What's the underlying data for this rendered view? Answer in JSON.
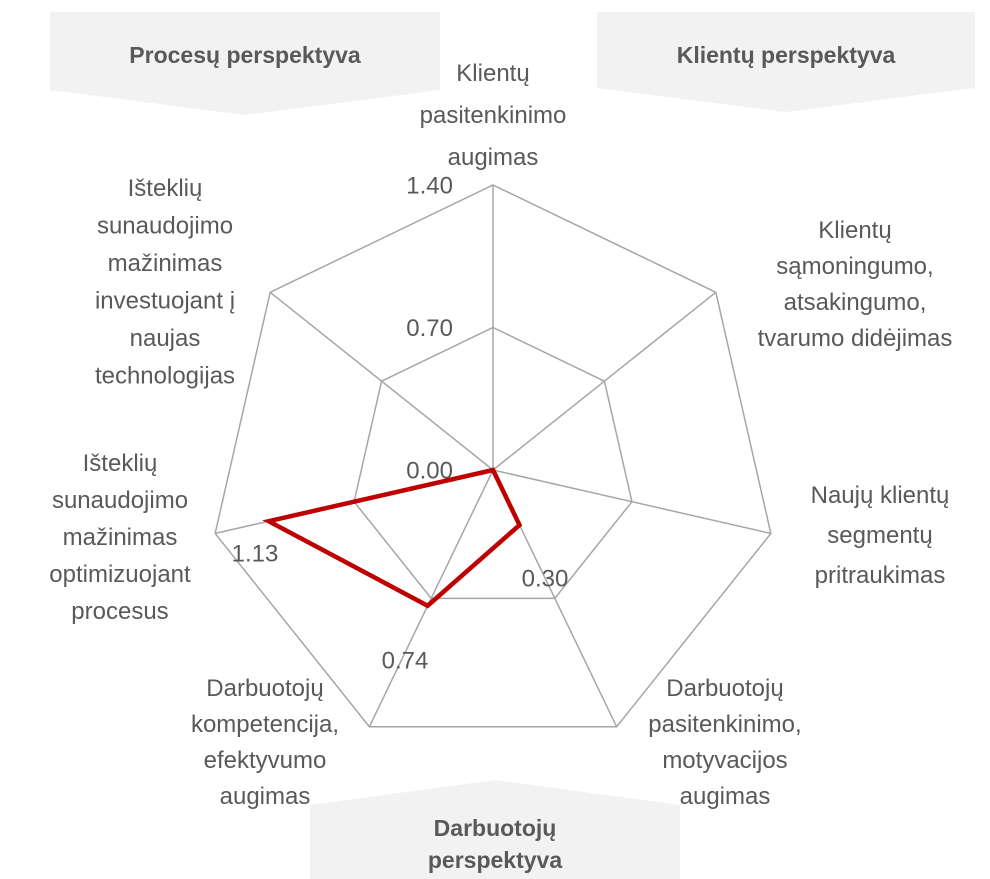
{
  "chart_data": {
    "type": "radar",
    "categories": [
      "Klientų\npasitenkinimo\naugimas",
      "Klientų\nsąmoningumo,\natsakingumo,\ntvarumo didėjimas",
      "Naujų klientų\nsegmentų\npritraukimas",
      "Darbuotojų\npasitenkinimo,\nmotyvacijos\naugimas",
      "Darbuotojų\nkompetencija,\nefektyvumo\naugimas",
      "Išteklių\nsunaudojimo\nmažinimas\noptimizuojant\nprocesus",
      "Išteklių\nsunaudojimo\nmažinimas\ninvestuojant į\nnaujas\ntechnologijas"
    ],
    "series": [
      {
        "color": "#c00000",
        "values": [
          0,
          0,
          0,
          0.3,
          0.74,
          1.13,
          0
        ],
        "value_labels": [
          null,
          null,
          null,
          "0.30",
          "0.74",
          "1.13",
          null
        ]
      }
    ],
    "ylim": [
      0,
      1.4
    ],
    "yticks": [
      {
        "value": 0,
        "label": "0.00"
      },
      {
        "value": 0.7,
        "label": "0.70"
      },
      {
        "value": 1.4,
        "label": "1.40"
      }
    ],
    "grid": true,
    "annotations": [
      "Procesų perspektyva",
      "Klientų perspektyva",
      "Darbuotojų\nperspektyva"
    ]
  }
}
